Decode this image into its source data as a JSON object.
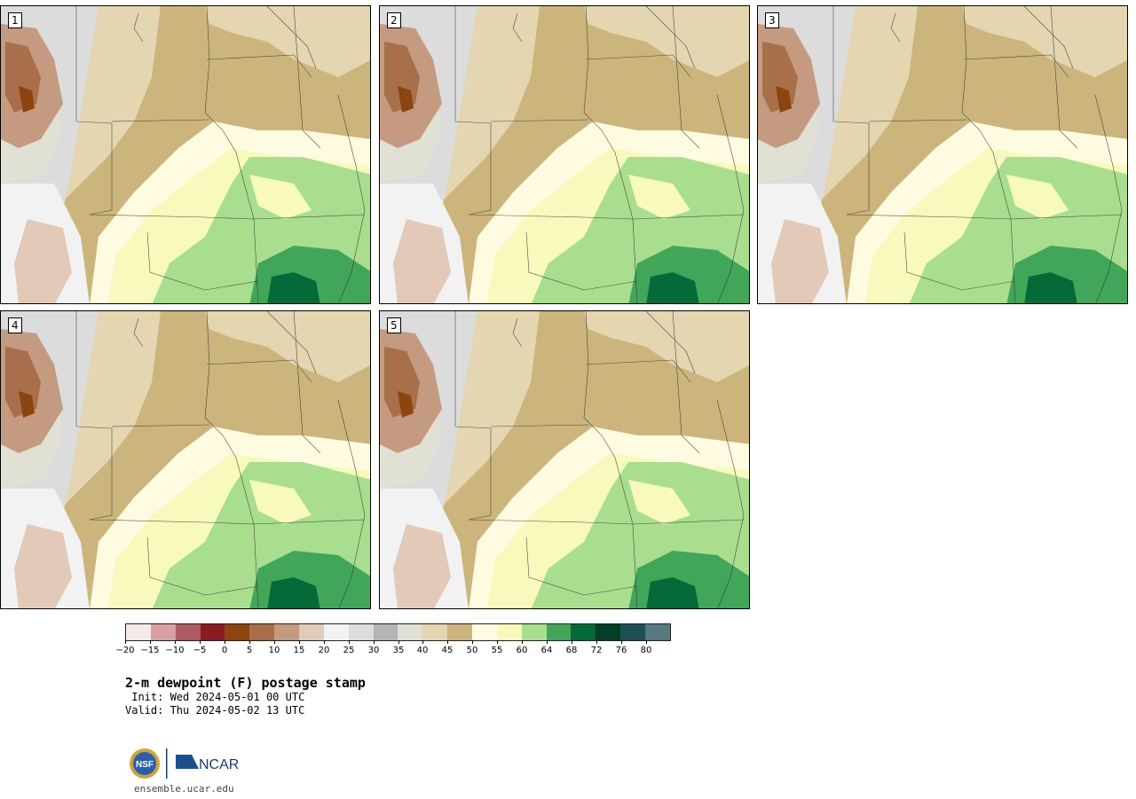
{
  "panels": [
    {
      "label": "1"
    },
    {
      "label": "2"
    },
    {
      "label": "3"
    },
    {
      "label": "4"
    },
    {
      "label": "5"
    }
  ],
  "colorbar": {
    "colors": [
      "#f5e9ea",
      "#d8a0a5",
      "#ad5a60",
      "#8c1a22",
      "#8c4410",
      "#a86f4a",
      "#c49a80",
      "#e2c9b8",
      "#f2f2f2",
      "#dcdcdc",
      "#b4b4b4",
      "#e0e0d4",
      "#e3d6b0",
      "#ccb57c",
      "#fffbe1",
      "#f7f9bd",
      "#a9de8e",
      "#42a65a",
      "#046a38",
      "#053e26",
      "#1c5054",
      "#557a80"
    ],
    "ticks": [
      "−20",
      "−15",
      "−10",
      "−5",
      "0",
      "5",
      "10",
      "15",
      "20",
      "25",
      "30",
      "35",
      "40",
      "45",
      "50",
      "55",
      "60",
      "64",
      "68",
      "72",
      "76",
      "80"
    ]
  },
  "title": "2-m dewpoint (F) postage stamp",
  "init": " Init: Wed 2024-05-01 00 UTC",
  "valid": "Valid: Thu 2024-05-02 13 UTC",
  "footer": {
    "site": "ensemble.ucar.edu",
    "logo_text_1": "NSF",
    "logo_text_2": "NCAR"
  }
}
